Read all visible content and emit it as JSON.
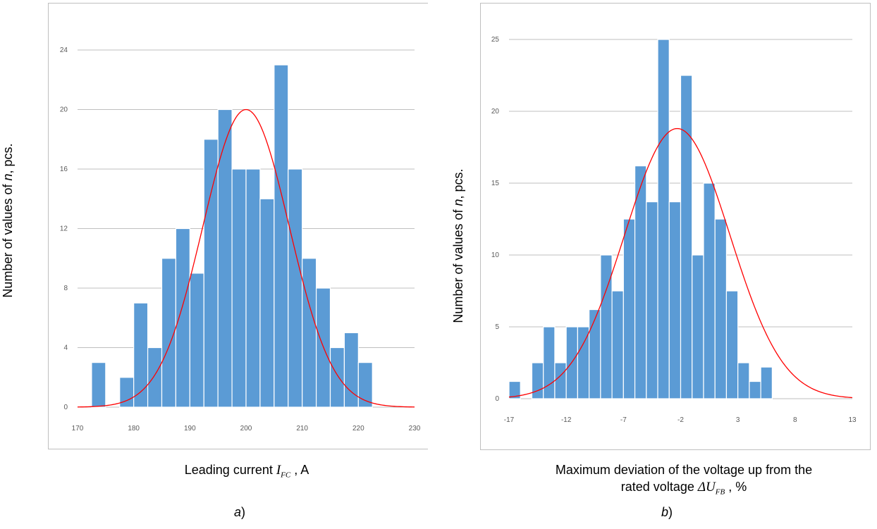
{
  "colors": {
    "bar": "#5b9bd5",
    "bar_edge": "#ffffff",
    "curve": "#ff0000",
    "grid": "#bfbfbf",
    "tick": "#595959"
  },
  "chart_data": [
    {
      "type": "bar",
      "id": "a",
      "panel_label": "a",
      "panel_suffix": ")",
      "xlabel_prefix": "Leading current ",
      "xlabel_symbol": "I",
      "xlabel_sub": "FC",
      "xlabel_suffix": " , A",
      "ylabel_prefix": "Number of values of ",
      "ylabel_symbol": "n",
      "ylabel_suffix": ", pcs.",
      "xlim": [
        170,
        230
      ],
      "ylim": [
        0,
        24
      ],
      "x_ticks": [
        170,
        180,
        190,
        200,
        210,
        220,
        230
      ],
      "y_ticks": [
        0,
        4,
        8,
        12,
        16,
        20,
        24
      ],
      "grid": true,
      "bin_width": 2.5,
      "bins": [
        {
          "x": 172.5,
          "value": 3
        },
        {
          "x": 177.5,
          "value": 2
        },
        {
          "x": 180.0,
          "value": 7
        },
        {
          "x": 182.5,
          "value": 4
        },
        {
          "x": 185.0,
          "value": 10
        },
        {
          "x": 187.5,
          "value": 12
        },
        {
          "x": 190.0,
          "value": 9
        },
        {
          "x": 192.5,
          "value": 18
        },
        {
          "x": 195.0,
          "value": 20
        },
        {
          "x": 197.5,
          "value": 16
        },
        {
          "x": 200.0,
          "value": 16
        },
        {
          "x": 202.5,
          "value": 14
        },
        {
          "x": 205.0,
          "value": 23
        },
        {
          "x": 207.5,
          "value": 16
        },
        {
          "x": 210.0,
          "value": 10
        },
        {
          "x": 212.5,
          "value": 8
        },
        {
          "x": 215.0,
          "value": 4
        },
        {
          "x": 217.5,
          "value": 5
        },
        {
          "x": 220.0,
          "value": 3
        }
      ],
      "normal_curve": {
        "mean": 200,
        "sd": 7.7,
        "peak": 20,
        "x_range": [
          170,
          230
        ]
      }
    },
    {
      "type": "bar",
      "id": "b",
      "panel_label": "b",
      "panel_suffix": ")",
      "xlabel_line1": "Maximum deviation of the voltage up from the",
      "xlabel_prefix": "rated voltage ",
      "xlabel_symbol": "ΔU",
      "xlabel_sub": "FB",
      "xlabel_suffix": " , %",
      "ylabel_prefix": "Number of values of ",
      "ylabel_symbol": "n",
      "ylabel_suffix": ", pcs.",
      "xlim": [
        -17,
        13
      ],
      "ylim": [
        0,
        25
      ],
      "x_ticks": [
        -17,
        -12,
        -7,
        -2,
        3,
        8,
        13
      ],
      "y_ticks": [
        0,
        5,
        10,
        15,
        20,
        25
      ],
      "grid": true,
      "bin_width": 1,
      "bins": [
        {
          "x": -17,
          "value": 1.2
        },
        {
          "x": -15,
          "value": 2.5
        },
        {
          "x": -14,
          "value": 5
        },
        {
          "x": -13,
          "value": 2.5
        },
        {
          "x": -12,
          "value": 5
        },
        {
          "x": -11,
          "value": 5
        },
        {
          "x": -10,
          "value": 6.2
        },
        {
          "x": -9,
          "value": 10
        },
        {
          "x": -8,
          "value": 7.5
        },
        {
          "x": -7,
          "value": 12.5
        },
        {
          "x": -6,
          "value": 16.2
        },
        {
          "x": -5,
          "value": 13.7
        },
        {
          "x": -4,
          "value": 25
        },
        {
          "x": -3,
          "value": 13.7
        },
        {
          "x": -2,
          "value": 22.5
        },
        {
          "x": -1,
          "value": 10
        },
        {
          "x": 0,
          "value": 15
        },
        {
          "x": 1,
          "value": 12.5
        },
        {
          "x": 2,
          "value": 7.5
        },
        {
          "x": 3,
          "value": 2.5
        },
        {
          "x": 4,
          "value": 1.2
        },
        {
          "x": 5,
          "value": 2.2
        }
      ],
      "normal_curve": {
        "mean": -2.3,
        "sd": 4.6,
        "peak": 18.8,
        "x_range": [
          -17,
          13
        ]
      }
    }
  ]
}
